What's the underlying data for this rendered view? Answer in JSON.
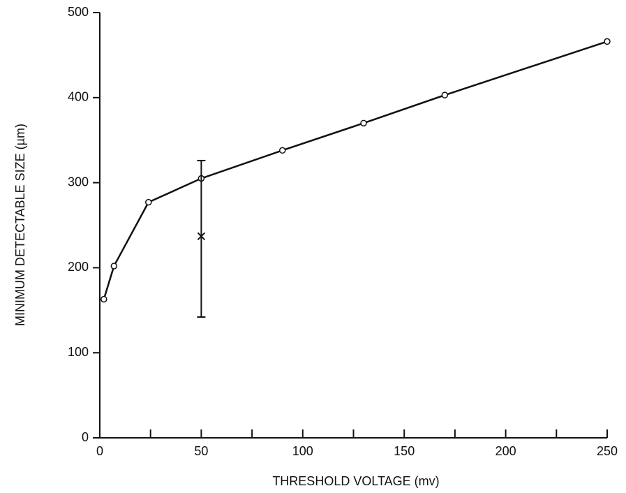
{
  "chart_data": {
    "type": "line",
    "x_label": "THRESHOLD VOLTAGE (mv)",
    "y_label": "MINIMUM DETECTABLE SIZE (µm)",
    "x": [
      2,
      7,
      24,
      50,
      90,
      130,
      170,
      250
    ],
    "series": [
      {
        "color": "#111111",
        "values": [
          163,
          202,
          277,
          305,
          338,
          370,
          403,
          466
        ]
      }
    ],
    "errorbar": {
      "x": 50,
      "value": 237,
      "low": 142,
      "high": 326
    },
    "xlim": [
      0,
      250
    ],
    "xticks": [
      0,
      50,
      100,
      150,
      200,
      250
    ],
    "xminorticks": [
      25,
      75,
      125,
      175,
      225
    ],
    "ylim": [
      0,
      500
    ],
    "yticks": [
      0,
      100,
      200,
      300,
      400,
      500
    ]
  }
}
